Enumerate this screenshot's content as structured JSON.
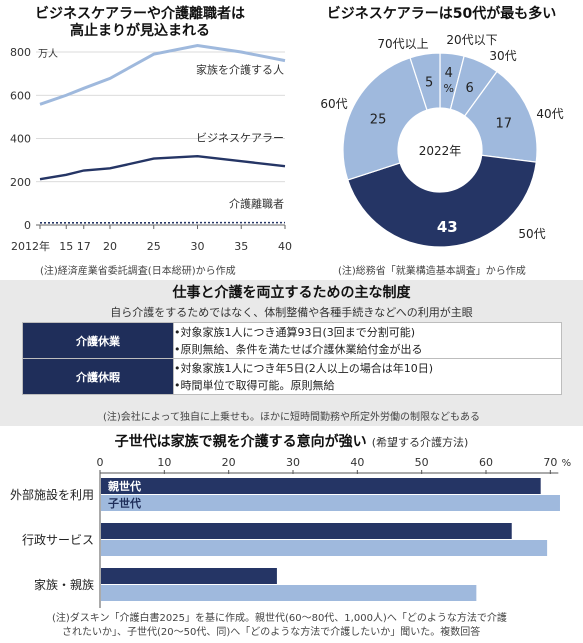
{
  "colors": {
    "navy": "#253565",
    "light": "#9fb9dd",
    "pale": "#c6d6ee",
    "band": "#e9e9e9"
  },
  "line_panel": {
    "title_lines": [
      "ビジネスケアラーや介護離職者は",
      "高止まりが見込まれる"
    ],
    "unit": "万人",
    "x_ticks": [
      "2012年",
      "15",
      "17",
      "20",
      "25",
      "30",
      "35",
      "40"
    ],
    "y_ticks": [
      "0",
      "200",
      "400",
      "600",
      "800"
    ],
    "labels": {
      "family": "家族を介護する人",
      "business": "ビジネスケアラー",
      "resign": "介護離職者"
    },
    "note": "(注)経済産業省委託調査(日本総研)から作成"
  },
  "donut_panel": {
    "title": "ビジネスケアラーは50代が最も多い",
    "center": "2022年",
    "note": "(注)総務省「就業構造基本調査」から作成"
  },
  "system": {
    "title": "仕事と介護を両立するための主な制度",
    "subtitle": "自ら介護をするためではなく、体制整備や各種手続きなどへの利用が主眼",
    "rows": [
      {
        "name": "介護休業",
        "items": [
          "•対象家族1人につき通算93日(3回まで分割可能)",
          "•原則無給、条件を満たせば介護休業給付金が出る"
        ]
      },
      {
        "name": "介護休暇",
        "items": [
          "•対象家族1人につき年5日(2人以上の場合は年10日)",
          "•時間単位で取得可能。原則無給"
        ]
      }
    ],
    "note": "(注)会社によって独自に上乗せも。ほかに短時間勤務や所定外労働の制限などもある"
  },
  "bar_panel": {
    "title": "子世代は家族で親を介護する意向が強い",
    "subtitle": "(希望する介護方法)",
    "x_ticks": [
      "0",
      "10",
      "20",
      "30",
      "40",
      "50",
      "60",
      "70"
    ],
    "pct": "%",
    "note_lines": [
      "(注)ダスキン「介護白書2025」を基に作成。親世代(60〜80代、1,000人)へ「どのような方法で介護",
      "されたいか」、子世代(20〜50代、同)へ「どのような方法で介護したいか」聞いた。複数回答"
    ]
  },
  "chart_data": [
    {
      "type": "line",
      "title": "ビジネスケアラーや介護離職者は高止まりが見込まれる",
      "ylabel": "万人",
      "ylim": [
        0,
        850
      ],
      "x": [
        2012,
        2015,
        2017,
        2020,
        2025,
        2030,
        2035,
        2040
      ],
      "series": [
        {
          "name": "家族を介護する人",
          "values": [
            558,
            600,
            632,
            678,
            790,
            830,
            800,
            760
          ]
        },
        {
          "name": "ビジネスケアラー",
          "values": [
            212,
            232,
            252,
            262,
            307,
            318,
            295,
            272
          ]
        },
        {
          "name": "介護離職者",
          "values": [
            10,
            10,
            10,
            10,
            10,
            11,
            11,
            11
          ]
        }
      ]
    },
    {
      "type": "pie",
      "title": "ビジネスケアラーは50代が最も多い",
      "categories": [
        "20代以下",
        "30代",
        "40代",
        "50代",
        "60代",
        "70代以上"
      ],
      "values": [
        4,
        6,
        17,
        43,
        25,
        5
      ],
      "value_labels": [
        "4",
        "6",
        "17",
        "43",
        "25",
        "5"
      ],
      "percent_unit": "%"
    },
    {
      "type": "bar",
      "title": "子世代は家族で親を介護する意向が強い",
      "categories": [
        "外部施設を利用",
        "行政サービス",
        "家族・親族"
      ],
      "xlim": [
        0,
        70
      ],
      "series": [
        {
          "name": "親世代",
          "values": [
            68.5,
            64.0,
            27.5
          ]
        },
        {
          "name": "子世代",
          "values": [
            71.5,
            69.5,
            58.5
          ]
        }
      ]
    }
  ]
}
